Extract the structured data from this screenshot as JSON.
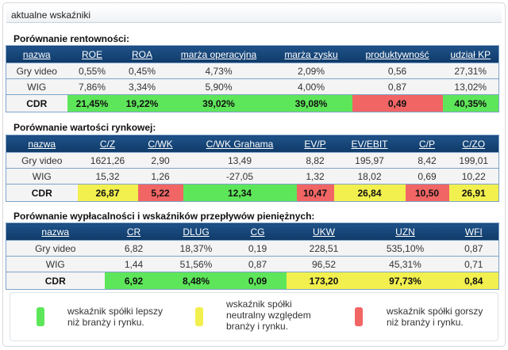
{
  "panel_title": "aktualne wskaźniki",
  "colors": {
    "better": "#5ee65a",
    "neutral": "#f2f04e",
    "worse": "#f26565",
    "header": "#1f5289"
  },
  "tables": [
    {
      "title": "Porównanie rentowności:",
      "headers": [
        "nazwa",
        "ROE",
        "ROA",
        "marża operacyjna",
        "marża zysku",
        "produktywność",
        "udział KP"
      ],
      "rows": [
        [
          "Gry video",
          "0,55%",
          "0,45%",
          "4,73%",
          "2,09%",
          "0,56",
          "27,31%"
        ],
        [
          "WIG",
          "7,86%",
          "3,34%",
          "5,90%",
          "4,00%",
          "0,87",
          "13,02%"
        ]
      ],
      "cdr": [
        "CDR",
        "21,45%",
        "19,22%",
        "39,02%",
        "39,08%",
        "0,49",
        "40,35%"
      ],
      "cdr_status": [
        "",
        "better",
        "better",
        "better",
        "better",
        "worse",
        "better"
      ]
    },
    {
      "title": "Porównanie wartości rynkowej:",
      "headers": [
        "nazwa",
        "C/Z",
        "C/WK",
        "C/WK Grahama",
        "EV/P",
        "EV/EBIT",
        "C/P",
        "C/ZO"
      ],
      "rows": [
        [
          "Gry video",
          "1621,26",
          "2,90",
          "13,49",
          "8,82",
          "195,97",
          "8,42",
          "199,01"
        ],
        [
          "WIG",
          "15,32",
          "1,26",
          "-27,05",
          "1,32",
          "18,02",
          "0,69",
          "10,22"
        ]
      ],
      "cdr": [
        "CDR",
        "26,87",
        "5,22",
        "12,34",
        "10,47",
        "26,84",
        "10,50",
        "26,91"
      ],
      "cdr_status": [
        "",
        "neutral",
        "worse",
        "better",
        "worse",
        "neutral",
        "worse",
        "neutral"
      ]
    },
    {
      "title": "Porównanie wypłacalności i wskaźników przepływów pieniężnych:",
      "headers": [
        "nazwa",
        "CR",
        "DLUG",
        "CG",
        "UKW",
        "UZN",
        "WFI"
      ],
      "rows": [
        [
          "Gry video",
          "6,82",
          "18,37%",
          "0,19",
          "228,51",
          "535,10%",
          "0,87"
        ],
        [
          "WIG",
          "1,44",
          "51,56%",
          "0,87",
          "96,52",
          "45,31%",
          "0,71"
        ]
      ],
      "cdr": [
        "CDR",
        "6,92",
        "8,48%",
        "0,09",
        "173,20",
        "97,73%",
        "0,84"
      ],
      "cdr_status": [
        "",
        "better",
        "better",
        "better",
        "neutral",
        "neutral",
        "neutral"
      ]
    }
  ],
  "legend": {
    "better": "wskaźnik spółki lepszy niż branży i rynku.",
    "neutral": "wskaźnik spółki neutralny względem branży i rynku.",
    "worse": "wskaźnik spółki gorszy niż branży i rynku."
  }
}
